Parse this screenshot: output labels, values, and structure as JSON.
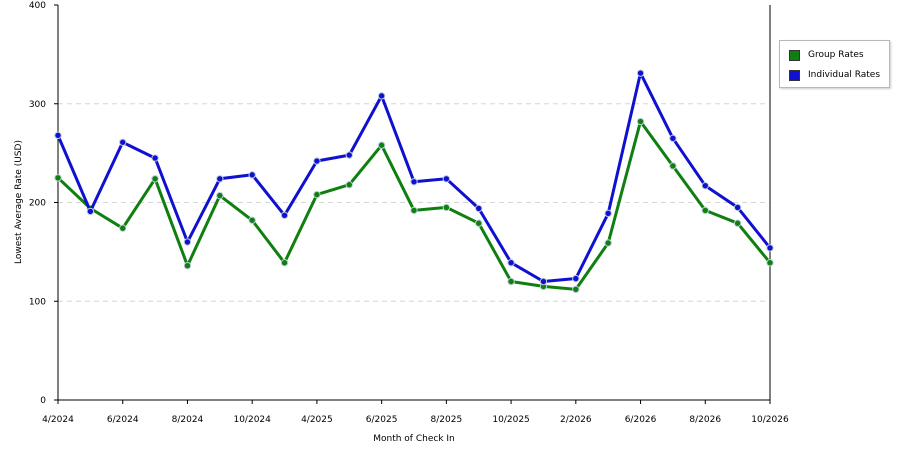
{
  "chart_data": {
    "type": "line",
    "title": "",
    "xlabel": "Month of Check In",
    "ylabel": "Lowest Average Rate (USD)",
    "ylim": [
      0,
      400
    ],
    "yticks": [
      0,
      100,
      200,
      300,
      400
    ],
    "grid": true,
    "legend_position": "top-right",
    "x_tick_labels": [
      {
        "index": 0,
        "label": "4/2024"
      },
      {
        "index": 2,
        "label": "6/2024"
      },
      {
        "index": 4,
        "label": "8/2024"
      },
      {
        "index": 6,
        "label": "10/2024"
      },
      {
        "index": 8,
        "label": "4/2025"
      },
      {
        "index": 10,
        "label": "6/2025"
      },
      {
        "index": 12,
        "label": "8/2025"
      },
      {
        "index": 14,
        "label": "10/2025"
      },
      {
        "index": 16,
        "label": "2/2026"
      },
      {
        "index": 18,
        "label": "6/2026"
      },
      {
        "index": 20,
        "label": "8/2026"
      },
      {
        "index": 22,
        "label": "10/2026"
      }
    ],
    "series": [
      {
        "name": "Group Rates",
        "color": "#0f7f0f",
        "values": [
          225,
          194,
          174,
          224,
          136,
          207,
          182,
          139,
          208,
          218,
          258,
          192,
          195,
          179,
          120,
          115,
          112,
          159,
          282,
          237,
          192,
          179,
          139
        ]
      },
      {
        "name": "Individual Rates",
        "color": "#1010d0",
        "values": [
          268,
          191,
          261,
          245,
          160,
          224,
          228,
          187,
          242,
          248,
          308,
          221,
          224,
          194,
          139,
          120,
          123,
          189,
          331,
          265,
          217,
          195,
          154
        ]
      }
    ]
  }
}
